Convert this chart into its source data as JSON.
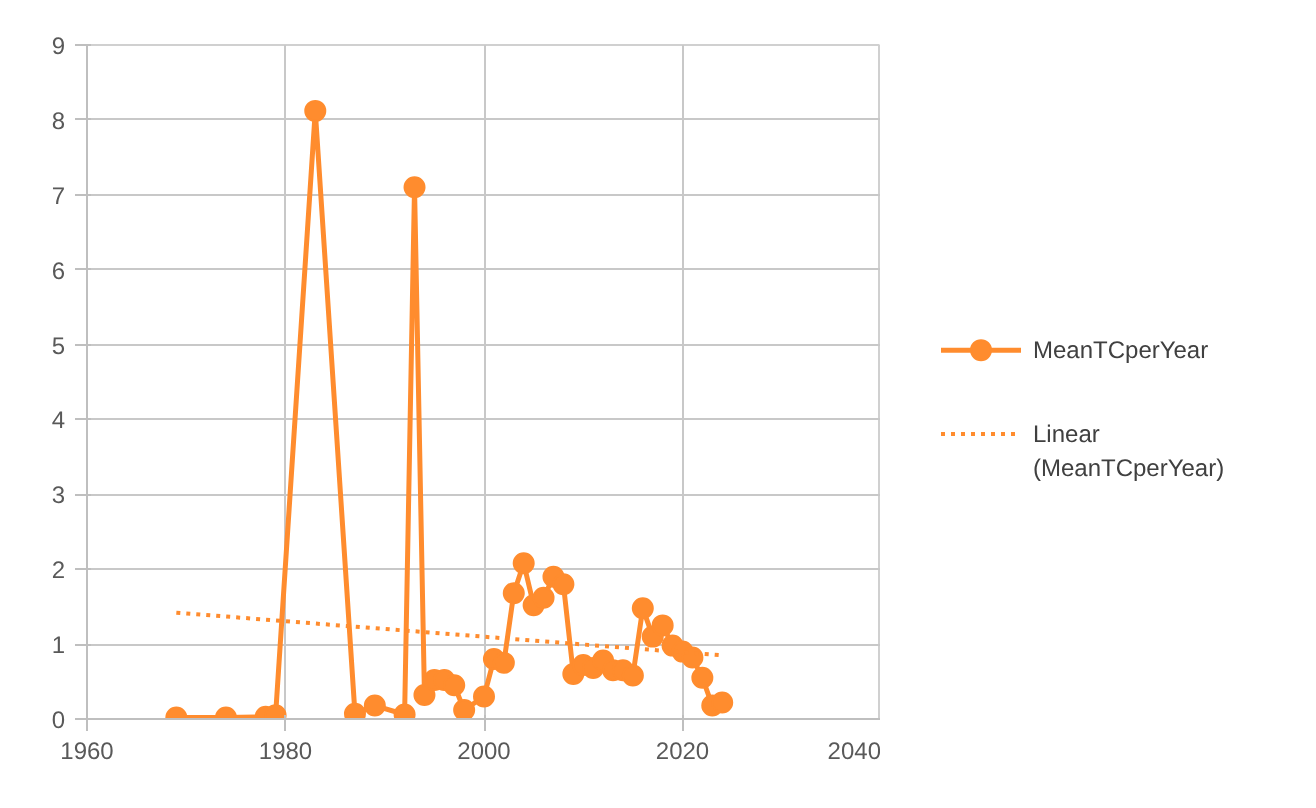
{
  "chart_data": {
    "type": "line",
    "xlim": [
      1960,
      2040
    ],
    "xticks": [
      1960,
      1980,
      2000,
      2020,
      2040
    ],
    "ylim": [
      0,
      9
    ],
    "yticks": [
      0,
      1,
      2,
      3,
      4,
      5,
      6,
      7,
      8,
      9
    ],
    "grid": true,
    "legend": "right",
    "series": [
      {
        "name": "MeanTCperYear",
        "color": "#ff8c2e",
        "marker": "circle",
        "line_style": "solid",
        "x": [
          1969,
          1974,
          1978,
          1979,
          1983,
          1987,
          1989,
          1992,
          1993,
          1994,
          1995,
          1996,
          1997,
          1998,
          2000,
          2001,
          2002,
          2003,
          2004,
          2005,
          2006,
          2007,
          2008,
          2009,
          2010,
          2011,
          2012,
          2013,
          2014,
          2015,
          2016,
          2017,
          2018,
          2019,
          2020,
          2021,
          2022,
          2023,
          2024
        ],
        "values": [
          0.02,
          0.02,
          0.03,
          0.05,
          8.12,
          0.07,
          0.18,
          0.06,
          7.1,
          0.32,
          0.52,
          0.52,
          0.45,
          0.12,
          0.3,
          0.8,
          0.75,
          1.68,
          2.08,
          1.52,
          1.62,
          1.9,
          1.8,
          0.6,
          0.72,
          0.68,
          0.78,
          0.65,
          0.65,
          0.58,
          1.48,
          1.1,
          1.25,
          0.98,
          0.9,
          0.82,
          0.55,
          0.18,
          0.22
        ]
      },
      {
        "name": "Linear (MeanTCperYear)",
        "color": "#ff8c2e",
        "marker": "none",
        "line_style": "dotted",
        "x": [
          1969,
          2024
        ],
        "values": [
          1.42,
          0.85
        ]
      }
    ]
  }
}
